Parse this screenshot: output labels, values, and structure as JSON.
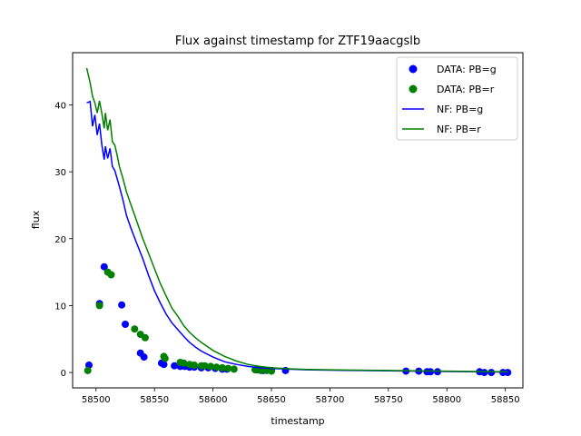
{
  "chart_data": {
    "type": "scatter",
    "title": "Flux against timestamp for ZTF19aacgslb",
    "xlabel": "timestamp",
    "ylabel": "flux",
    "xlim": [
      58480,
      58865
    ],
    "ylim": [
      -2.3,
      47.8
    ],
    "xticks": [
      58500,
      58550,
      58600,
      58650,
      58700,
      58750,
      58800,
      58850
    ],
    "yticks": [
      0,
      10,
      20,
      30,
      40
    ],
    "grid": false,
    "legend_position": "top-right",
    "series": [
      {
        "name": "DATA: PB=g",
        "kind": "scatter",
        "color": "#0000ff",
        "x": [
          58494,
          58503,
          58507,
          58522,
          58525,
          58538,
          58541,
          58556,
          58558,
          58567,
          58572,
          58576,
          58580,
          58584,
          58590,
          58596,
          58602,
          58608,
          58612,
          58638,
          58643,
          58650,
          58662,
          58765,
          58776,
          58783,
          58786,
          58792,
          58828,
          58832,
          58838,
          58848,
          58852
        ],
        "y": [
          1.1,
          10.3,
          15.8,
          10.1,
          7.2,
          2.9,
          2.3,
          1.4,
          1.2,
          1.0,
          0.9,
          0.9,
          0.8,
          0.8,
          0.7,
          0.7,
          0.6,
          0.5,
          0.5,
          0.4,
          0.3,
          0.3,
          0.3,
          0.2,
          0.2,
          0.1,
          0.1,
          0.1,
          0.1,
          0.0,
          0.0,
          0.0,
          0.0
        ]
      },
      {
        "name": "DATA: PB=r",
        "kind": "scatter",
        "color": "#008000",
        "x": [
          58493,
          58503,
          58510,
          58513,
          58533,
          58538,
          58542,
          58558,
          58559,
          58572,
          58575,
          58580,
          58584,
          58590,
          58593,
          58598,
          58603,
          58608,
          58613,
          58618,
          58636,
          58641,
          58646,
          58650
        ],
        "y": [
          0.3,
          10.0,
          15.0,
          14.6,
          6.5,
          5.7,
          5.2,
          2.4,
          2.1,
          1.5,
          1.4,
          1.2,
          1.1,
          1.0,
          1.0,
          0.9,
          0.8,
          0.7,
          0.6,
          0.5,
          0.4,
          0.3,
          0.3,
          0.2
        ]
      },
      {
        "name": "NF: PB=g",
        "kind": "line",
        "color": "#0000ff",
        "x": [
          58492,
          58495,
          58497,
          58499,
          58501,
          58503,
          58505,
          58507,
          58508,
          58510,
          58512,
          58514,
          58516,
          58518,
          58520,
          58523,
          58526,
          58530,
          58535,
          58540,
          58545,
          58550,
          58555,
          58560,
          58565,
          58570,
          58575,
          58580,
          58585,
          58590,
          58600,
          58610,
          58620,
          58630,
          58640,
          58650,
          58665,
          58680,
          58700,
          58725,
          58750,
          58775,
          58800,
          58825,
          58852
        ],
        "y": [
          40.3,
          40.5,
          36.8,
          38.5,
          35.5,
          37.2,
          34.0,
          31.8,
          33.8,
          32.0,
          33.5,
          30.8,
          30.2,
          29.0,
          27.8,
          25.8,
          23.5,
          21.5,
          19.2,
          17.0,
          14.5,
          12.2,
          10.4,
          8.7,
          7.4,
          6.4,
          5.4,
          4.5,
          3.8,
          3.2,
          2.3,
          1.6,
          1.2,
          0.9,
          0.7,
          0.6,
          0.5,
          0.4,
          0.35,
          0.3,
          0.25,
          0.2,
          0.15,
          0.1,
          0.05
        ]
      },
      {
        "name": "NF: PB=r",
        "kind": "line",
        "color": "#008000",
        "x": [
          58492,
          58495,
          58497,
          58499,
          58501,
          58503,
          58505,
          58507,
          58508,
          58510,
          58512,
          58514,
          58516,
          58518,
          58520,
          58523,
          58526,
          58530,
          58535,
          58540,
          58545,
          58550,
          58555,
          58560,
          58565,
          58570,
          58575,
          58580,
          58585,
          58590,
          58600,
          58610,
          58620,
          58630,
          58640,
          58650,
          58665,
          58680,
          58700,
          58725,
          58750,
          58775,
          58800,
          58825,
          58852
        ],
        "y": [
          45.5,
          43.3,
          41.3,
          40.3,
          38.8,
          40.6,
          38.7,
          36.5,
          38.8,
          36.2,
          37.8,
          34.5,
          34.0,
          32.5,
          30.8,
          29.0,
          27.0,
          25.0,
          22.5,
          20.0,
          17.8,
          15.5,
          13.3,
          11.4,
          9.6,
          8.4,
          7.0,
          6.0,
          5.2,
          4.5,
          3.3,
          2.4,
          1.7,
          1.2,
          0.9,
          0.7,
          0.55,
          0.45,
          0.4,
          0.35,
          0.3,
          0.25,
          0.2,
          0.15,
          0.1
        ]
      }
    ]
  }
}
